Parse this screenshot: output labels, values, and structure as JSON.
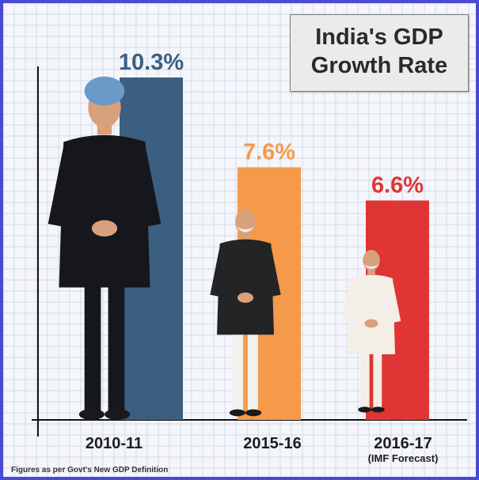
{
  "chart_data": {
    "type": "bar",
    "title": "India's GDP Growth Rate",
    "title_lines": [
      "India's GDP",
      "Growth Rate"
    ],
    "categories": [
      "2010-11",
      "2015-16",
      "2016-17"
    ],
    "category_notes": [
      "",
      "",
      "(IMF Forecast)"
    ],
    "values": [
      10.3,
      7.6,
      6.6
    ],
    "data_labels": [
      "10.3%",
      "7.6%",
      "6.6%"
    ],
    "colors": [
      "#3b5f80",
      "#f59a4a",
      "#e03535"
    ],
    "ylim": [
      0,
      10.3
    ],
    "grid": true,
    "xlabel": "",
    "ylabel": ""
  },
  "footnote": "Figures as per Govt's New GDP Definition",
  "figures": [
    "person-illustration-1",
    "person-illustration-2",
    "person-illustration-3"
  ]
}
